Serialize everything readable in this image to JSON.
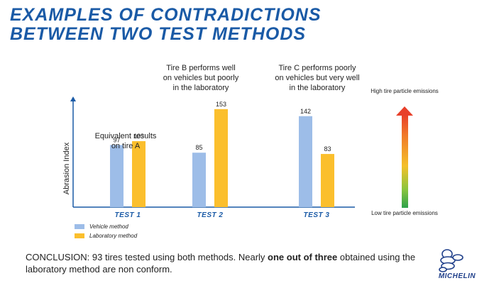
{
  "title": {
    "line1": "EXAMPLES OF CONTRADICTIONS",
    "line2": "BETWEEN TWO TEST METHODS"
  },
  "chart_data": {
    "type": "bar",
    "categories": [
      "TEST 1",
      "TEST 2",
      "TEST 3"
    ],
    "series": [
      {
        "name": "Vehicle method",
        "values": [
          97,
          85,
          142
        ],
        "color": "#9dbde8"
      },
      {
        "name": "Laboratory method",
        "values": [
          103,
          153,
          83
        ],
        "color": "#fbbf2d"
      }
    ],
    "ylabel": "Abrasion Index",
    "ylim": [
      0,
      165
    ],
    "grid": false,
    "legend": "bottom-left",
    "annotations": [
      "Equivalent results on tire A",
      "Tire B performs well on vehicles but poorly in the laboratory",
      "Tire C performs poorly on vehicles but very well in the laboratory"
    ]
  },
  "scale": {
    "top_label": "High tire particle emissions",
    "bottom_label": "Low tire particle emissions"
  },
  "conclusion": {
    "part1": "CONCLUSION: 93 tires tested using both methods. Nearly ",
    "bold": "one out of three",
    "part2": " obtained using the laboratory method are non conform."
  },
  "logo": {
    "text": "MICHELIN"
  }
}
